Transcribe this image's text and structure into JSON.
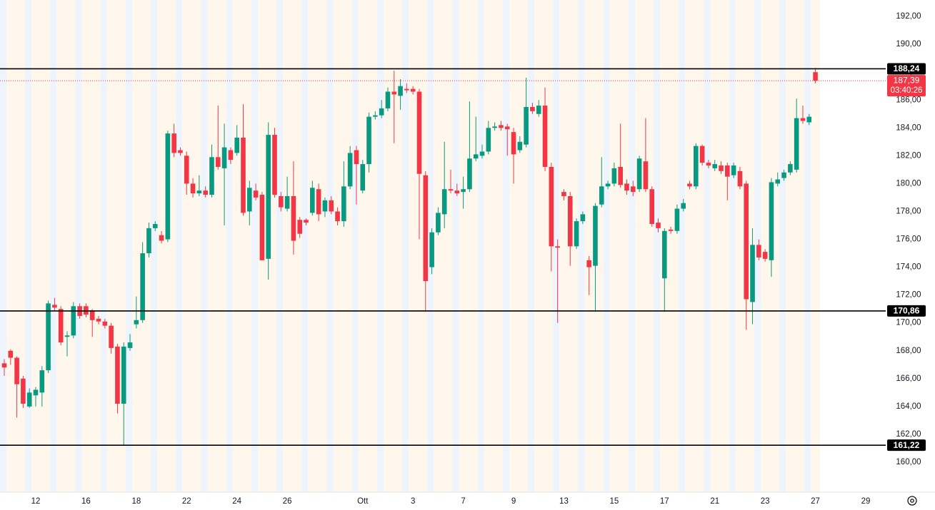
{
  "chart_data": {
    "type": "candlestick",
    "categories": [
      null,
      null,
      null,
      null,
      null,
      "12",
      null,
      null,
      null,
      null,
      null,
      null,
      null,
      "16",
      null,
      null,
      null,
      null,
      null,
      null,
      null,
      "18",
      null,
      null,
      null,
      null,
      null,
      null,
      null,
      "22",
      null,
      null,
      null,
      null,
      null,
      null,
      null,
      "24",
      null,
      null,
      null,
      null,
      null,
      null,
      null,
      "26",
      null,
      null,
      null,
      null,
      null,
      null,
      null,
      null,
      null,
      null,
      null,
      "Ott",
      null,
      null,
      null,
      null,
      null,
      null,
      null,
      "3",
      null,
      null,
      null,
      null,
      null,
      null,
      null,
      "7",
      null,
      null,
      null,
      null,
      null,
      null,
      null,
      "9",
      null,
      null,
      null,
      null,
      null,
      null,
      null,
      "13",
      null,
      null,
      null,
      null,
      null,
      null,
      null,
      "15",
      null,
      null,
      null,
      null,
      null,
      null,
      null,
      "17",
      null,
      null,
      null,
      null,
      null,
      null,
      null,
      "21",
      null,
      null,
      null,
      null,
      null,
      null,
      null,
      "23",
      null,
      null,
      null,
      null,
      null,
      null,
      null,
      "27",
      null,
      null,
      null,
      null,
      null,
      null,
      null,
      "29",
      null,
      null
    ],
    "open": [
      167.1,
      168.0,
      167.5,
      166.0,
      164.0,
      164.8,
      165.0,
      166.6,
      171.3,
      171.0,
      169.0,
      169.1,
      171.2,
      171.2,
      170.9,
      170.3,
      170.1,
      169.8,
      168.3,
      164.2,
      168.2,
      169.9,
      170.2,
      175.0,
      176.8,
      176.3,
      176.0,
      183.6,
      182.4,
      182.0,
      180.0,
      179.3,
      179.5,
      179.2,
      181.9,
      181.1,
      182.4,
      182.2,
      183.3,
      178.0,
      179.5,
      179.2,
      174.6,
      183.5,
      179.1,
      178.2,
      179.1,
      177.4,
      177.4,
      177.9,
      179.6,
      178.0,
      178.8,
      178.0,
      177.3,
      179.8,
      182.4,
      179.5,
      181.4,
      184.8,
      184.9,
      185.4,
      186.6,
      186.3,
      186.8,
      186.8,
      186.6,
      180.6,
      174.0,
      176.5,
      177.8,
      179.6,
      179.5,
      179.4,
      179.6,
      181.8,
      182.0,
      182.3,
      184.0,
      184.2,
      184.1,
      183.7,
      182.4,
      182.8,
      185.5,
      185.0,
      185.6,
      181.2,
      175.5,
      179.4,
      179.1,
      175.5,
      177.3,
      174.5,
      174.1,
      178.5,
      179.8,
      180.0,
      181.2,
      180.0,
      179.8,
      179.6,
      181.6,
      179.6,
      177.2,
      173.2,
      176.7,
      176.6,
      178.2,
      180.0,
      179.8,
      182.7,
      181.5,
      181.1,
      181.3,
      181.3,
      180.6,
      180.9,
      180.0,
      171.5,
      175.6,
      175.1,
      174.5,
      180.0,
      180.4,
      180.8,
      181.0,
      184.7,
      184.4,
      188.0,
      null,
      null,
      null,
      null,
      null,
      null,
      null,
      null,
      null,
      null
    ],
    "high": [
      167.4,
      168.1,
      167.6,
      166.2,
      165.3,
      165.4,
      166.9,
      171.6,
      171.8,
      171.2,
      169.4,
      171.5,
      171.4,
      171.4,
      171.0,
      170.5,
      170.3,
      170.0,
      168.5,
      168.6,
      169.2,
      171.9,
      175.8,
      177.2,
      177.3,
      176.6,
      183.8,
      184.3,
      182.6,
      182.3,
      180.4,
      180.6,
      179.8,
      182.8,
      185.6,
      184.3,
      182.6,
      184.2,
      185.7,
      180.2,
      180.0,
      179.4,
      184.4,
      184.0,
      179.4,
      180.5,
      181.6,
      177.6,
      177.5,
      180.2,
      180.0,
      179.0,
      179.1,
      178.3,
      181.6,
      182.7,
      182.7,
      181.7,
      185.1,
      185.2,
      186.0,
      186.9,
      188.1,
      187.5,
      187.2,
      187.0,
      186.8,
      180.9,
      176.8,
      178.3,
      183.0,
      181.0,
      180.0,
      180.5,
      185.9,
      184.8,
      182.8,
      184.5,
      184.4,
      184.5,
      184.3,
      184.0,
      183.4,
      187.6,
      185.8,
      186.0,
      186.9,
      181.5,
      176.0,
      179.6,
      179.4,
      177.5,
      178.0,
      174.8,
      178.6,
      181.9,
      180.2,
      181.5,
      184.3,
      180.3,
      180.2,
      182.0,
      184.7,
      179.8,
      177.5,
      176.8,
      176.9,
      178.5,
      178.9,
      180.2,
      182.9,
      182.8,
      181.7,
      181.7,
      181.6,
      181.5,
      181.5,
      181.2,
      180.2,
      176.8,
      176.0,
      175.3,
      180.4,
      180.8,
      181.0,
      181.6,
      186.1,
      185.6,
      185.0,
      188.3,
      null,
      null,
      null,
      null,
      null,
      null,
      null,
      null,
      null,
      null
    ],
    "low": [
      166.2,
      167.0,
      163.2,
      163.9,
      163.9,
      164.0,
      164.0,
      166.4,
      170.9,
      168.4,
      167.6,
      168.9,
      170.3,
      170.4,
      169.0,
      169.9,
      169.6,
      167.8,
      163.5,
      161.2,
      168.0,
      169.6,
      170.0,
      174.7,
      176.6,
      175.7,
      175.8,
      181.9,
      182.0,
      179.2,
      179.0,
      179.1,
      179.0,
      179.0,
      181.0,
      177.0,
      181.4,
      182.0,
      177.7,
      177.0,
      178.8,
      174.5,
      173.1,
      179.0,
      178.0,
      178.0,
      174.9,
      176.1,
      177.0,
      177.7,
      177.3,
      177.6,
      177.8,
      177.0,
      176.9,
      179.6,
      178.5,
      179.3,
      180.8,
      184.6,
      184.7,
      185.2,
      182.9,
      185.3,
      186.5,
      186.4,
      176.0,
      170.8,
      173.5,
      176.3,
      176.8,
      179.3,
      179.1,
      178.2,
      179.4,
      181.6,
      181.8,
      182.1,
      183.8,
      183.8,
      182.0,
      180.0,
      182.2,
      182.6,
      185.0,
      184.8,
      180.9,
      173.7,
      170.0,
      178.8,
      174.1,
      175.3,
      177.1,
      172.0,
      170.8,
      178.3,
      179.6,
      179.8,
      179.7,
      179.2,
      179.1,
      179.4,
      179.4,
      176.9,
      176.5,
      170.8,
      176.4,
      176.4,
      178.0,
      179.6,
      179.6,
      181.3,
      181.1,
      180.9,
      180.7,
      178.8,
      180.4,
      179.6,
      169.5,
      169.9,
      174.5,
      174.4,
      173.3,
      179.8,
      180.2,
      180.6,
      180.8,
      184.3,
      184.2,
      187.2,
      null,
      null,
      null,
      null,
      null,
      null,
      null,
      null,
      null,
      null
    ],
    "close": [
      166.8,
      167.5,
      165.6,
      164.2,
      165.0,
      165.2,
      166.6,
      171.4,
      171.1,
      168.6,
      169.1,
      171.2,
      170.5,
      170.6,
      170.2,
      170.1,
      169.8,
      168.2,
      164.2,
      168.3,
      168.6,
      170.2,
      175.0,
      176.8,
      177.1,
      175.9,
      183.6,
      182.2,
      182.2,
      180.0,
      179.3,
      179.5,
      179.2,
      181.9,
      181.2,
      182.6,
      181.7,
      183.3,
      177.9,
      179.7,
      179.0,
      174.5,
      183.5,
      179.2,
      178.3,
      179.1,
      175.9,
      176.4,
      177.2,
      179.7,
      177.8,
      178.8,
      178.0,
      177.3,
      179.8,
      182.2,
      181.4,
      181.4,
      184.8,
      184.9,
      185.4,
      186.6,
      186.4,
      187.0,
      186.7,
      186.6,
      180.7,
      173.0,
      176.5,
      177.9,
      179.6,
      179.5,
      179.3,
      179.6,
      181.8,
      182.1,
      182.3,
      184.0,
      184.1,
      184.0,
      183.9,
      182.1,
      183.0,
      185.5,
      185.2,
      185.6,
      181.2,
      175.5,
      175.4,
      179.1,
      175.5,
      177.3,
      177.8,
      174.0,
      178.4,
      179.8,
      180.0,
      181.1,
      179.9,
      179.5,
      179.4,
      181.8,
      179.6,
      177.1,
      176.8,
      176.6,
      176.6,
      178.2,
      178.6,
      179.8,
      182.7,
      181.5,
      181.3,
      181.4,
      180.9,
      180.5,
      181.3,
      179.8,
      171.7,
      175.6,
      174.7,
      174.6,
      180.1,
      180.3,
      180.8,
      181.4,
      184.7,
      184.5,
      184.8,
      187.39,
      null,
      null,
      null,
      null,
      null,
      null,
      null,
      null,
      null,
      null
    ],
    "up_color": "#089981",
    "down_color": "#f23645",
    "ylim": [
      157.85,
      193.18
    ],
    "yticks": [
      {
        "value": 160,
        "label": "160,00"
      },
      {
        "value": 162,
        "label": "162,00"
      },
      {
        "value": 164,
        "label": "164,00"
      },
      {
        "value": 166,
        "label": "166,00"
      },
      {
        "value": 168,
        "label": "168,00"
      },
      {
        "value": 170,
        "label": "170,00"
      },
      {
        "value": 172,
        "label": "172,00"
      },
      {
        "value": 174,
        "label": "174,00"
      },
      {
        "value": 176,
        "label": "176,00"
      },
      {
        "value": 178,
        "label": "178,00"
      },
      {
        "value": 180,
        "label": "180,00"
      },
      {
        "value": 182,
        "label": "182,00"
      },
      {
        "value": 184,
        "label": "184,00"
      },
      {
        "value": 186,
        "label": "186,00"
      },
      {
        "value": 188,
        "label": "188,00"
      },
      {
        "value": 190,
        "label": "190,00"
      },
      {
        "value": 192,
        "label": "192,00"
      }
    ],
    "grid": false,
    "horizontal_lines": [
      {
        "value": 188.24,
        "label": "188,24",
        "color": "#000000"
      },
      {
        "value": 170.86,
        "label": "170,86",
        "color": "#000000"
      },
      {
        "value": 161.22,
        "label": "161,22",
        "color": "#000000"
      }
    ],
    "last_price": {
      "value": 187.39,
      "label": "187,39",
      "countdown": "03:40:26",
      "color": "#f23645"
    }
  }
}
